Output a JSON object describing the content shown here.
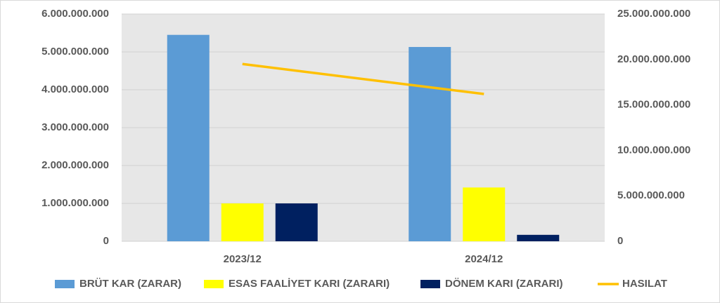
{
  "chart_data": {
    "type": "bar",
    "categories": [
      "2023/12",
      "2024/12"
    ],
    "series": [
      {
        "name": "BRÜT KAR (ZARAR)",
        "color": "#5b9bd5",
        "values": [
          5450000000,
          5130000000
        ]
      },
      {
        "name": "ESAS FAALİYET KARI (ZARARI)",
        "color": "#ffff00",
        "values": [
          1000000000,
          1420000000
        ]
      },
      {
        "name": "DÖNEM KARI (ZARARI)",
        "color": "#002060",
        "values": [
          1000000000,
          170000000
        ]
      },
      {
        "name": "HASILAT",
        "color": "#ffc000",
        "type": "line",
        "axis": "y2",
        "values": [
          19500000000,
          16200000000
        ]
      }
    ],
    "ylim": [
      0,
      6000000000
    ],
    "yticks": [
      0,
      {
        "value": 1000000000,
        "label": "1.000.000.000"
      },
      {
        "value": 2000000000,
        "label": "2.000.000.000"
      },
      {
        "value": 3000000000,
        "label": "3.000.000.000"
      },
      {
        "value": 4000000000,
        "label": "4.000.000.000"
      },
      {
        "value": 5000000000,
        "label": "5.000.000.000"
      },
      {
        "value": 6000000000,
        "label": "6.000.000.000"
      }
    ],
    "y2lim": [
      0,
      25000000000
    ],
    "y2ticks": [
      0,
      {
        "value": 5000000000,
        "label": "5.000.000.000"
      },
      {
        "value": 10000000000,
        "label": "10.000.000.000"
      },
      {
        "value": 15000000000,
        "label": "15.000.000.000"
      },
      {
        "value": 20000000000,
        "label": "20.000.000.000"
      },
      {
        "value": 25000000000,
        "label": "25.000.000.000"
      }
    ],
    "grid": true,
    "legend": "bottom"
  }
}
